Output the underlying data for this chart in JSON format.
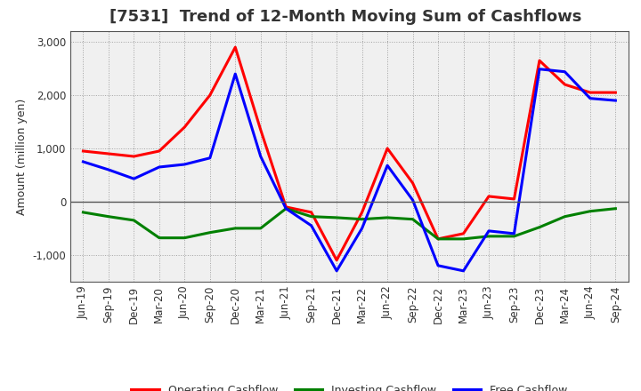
{
  "title": "[7531]  Trend of 12-Month Moving Sum of Cashflows",
  "ylabel": "Amount (million yen)",
  "x_labels": [
    "Jun-19",
    "Sep-19",
    "Dec-19",
    "Mar-20",
    "Jun-20",
    "Sep-20",
    "Dec-20",
    "Mar-21",
    "Jun-21",
    "Sep-21",
    "Dec-21",
    "Mar-22",
    "Jun-22",
    "Sep-22",
    "Dec-22",
    "Mar-23",
    "Jun-23",
    "Sep-23",
    "Dec-23",
    "Mar-24",
    "Jun-24",
    "Sep-24"
  ],
  "operating": [
    950,
    900,
    850,
    950,
    1400,
    2000,
    2900,
    1350,
    -100,
    -200,
    -1100,
    -200,
    1000,
    350,
    -700,
    -600,
    100,
    50,
    2650,
    2200,
    2050,
    2050
  ],
  "investing": [
    -200,
    -280,
    -350,
    -680,
    -680,
    -580,
    -500,
    -500,
    -130,
    -280,
    -300,
    -330,
    -300,
    -330,
    -700,
    -700,
    -650,
    -650,
    -480,
    -280,
    -180,
    -130
  ],
  "free": [
    750,
    600,
    430,
    650,
    700,
    820,
    2400,
    850,
    -130,
    -450,
    -1300,
    -500,
    680,
    30,
    -1200,
    -1300,
    -550,
    -600,
    2490,
    2440,
    1940,
    1900
  ],
  "operating_color": "#ff0000",
  "investing_color": "#008000",
  "free_color": "#0000ff",
  "ylim": [
    -1500,
    3200
  ],
  "yticks": [
    -1000,
    0,
    1000,
    2000,
    3000
  ],
  "plot_bg_color": "#f0f0f0",
  "fig_bg_color": "#ffffff",
  "grid_color": "#999999",
  "linewidth": 2.2,
  "title_fontsize": 13,
  "title_color": "#333333",
  "tick_fontsize": 8.5,
  "ylabel_fontsize": 9,
  "legend_fontsize": 9
}
